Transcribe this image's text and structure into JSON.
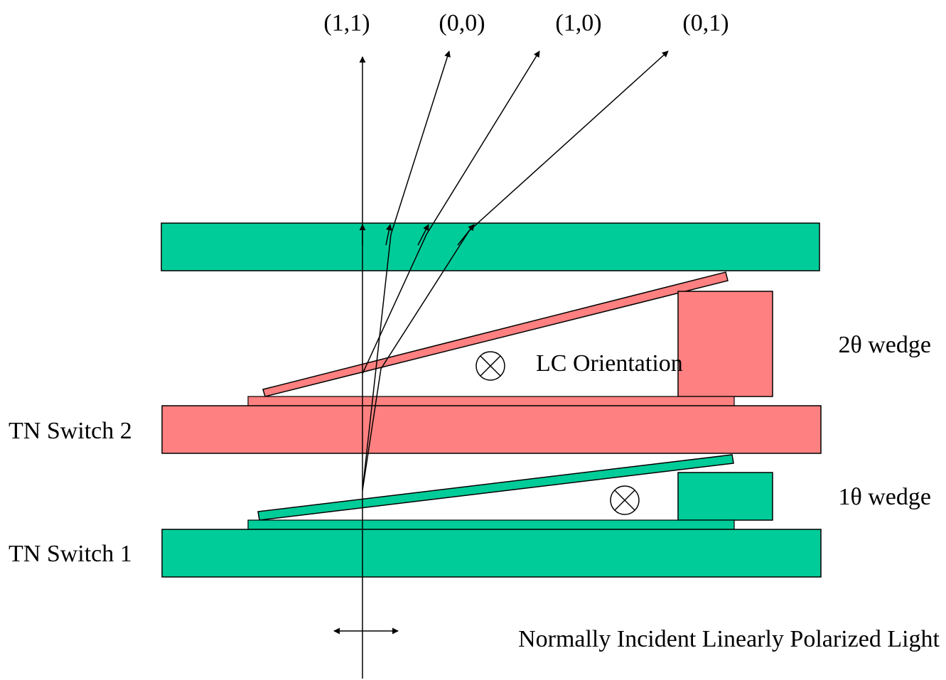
{
  "outputs": [
    {
      "label": "(1,1)"
    },
    {
      "label": "(0,0)"
    },
    {
      "label": "(1,0)"
    },
    {
      "label": "(0,1)"
    }
  ],
  "labels": {
    "tn_switch_2": "TN Switch 2",
    "tn_switch_1": "TN Switch 1",
    "wedge_2": "2θ wedge",
    "wedge_1": "1θ wedge",
    "lc_orientation": "LC Orientation",
    "incident_light": "Normally Incident Linearly Polarized Light"
  },
  "colors": {
    "green": "#00cc99",
    "red": "#ff8080",
    "stroke": "#000000"
  }
}
